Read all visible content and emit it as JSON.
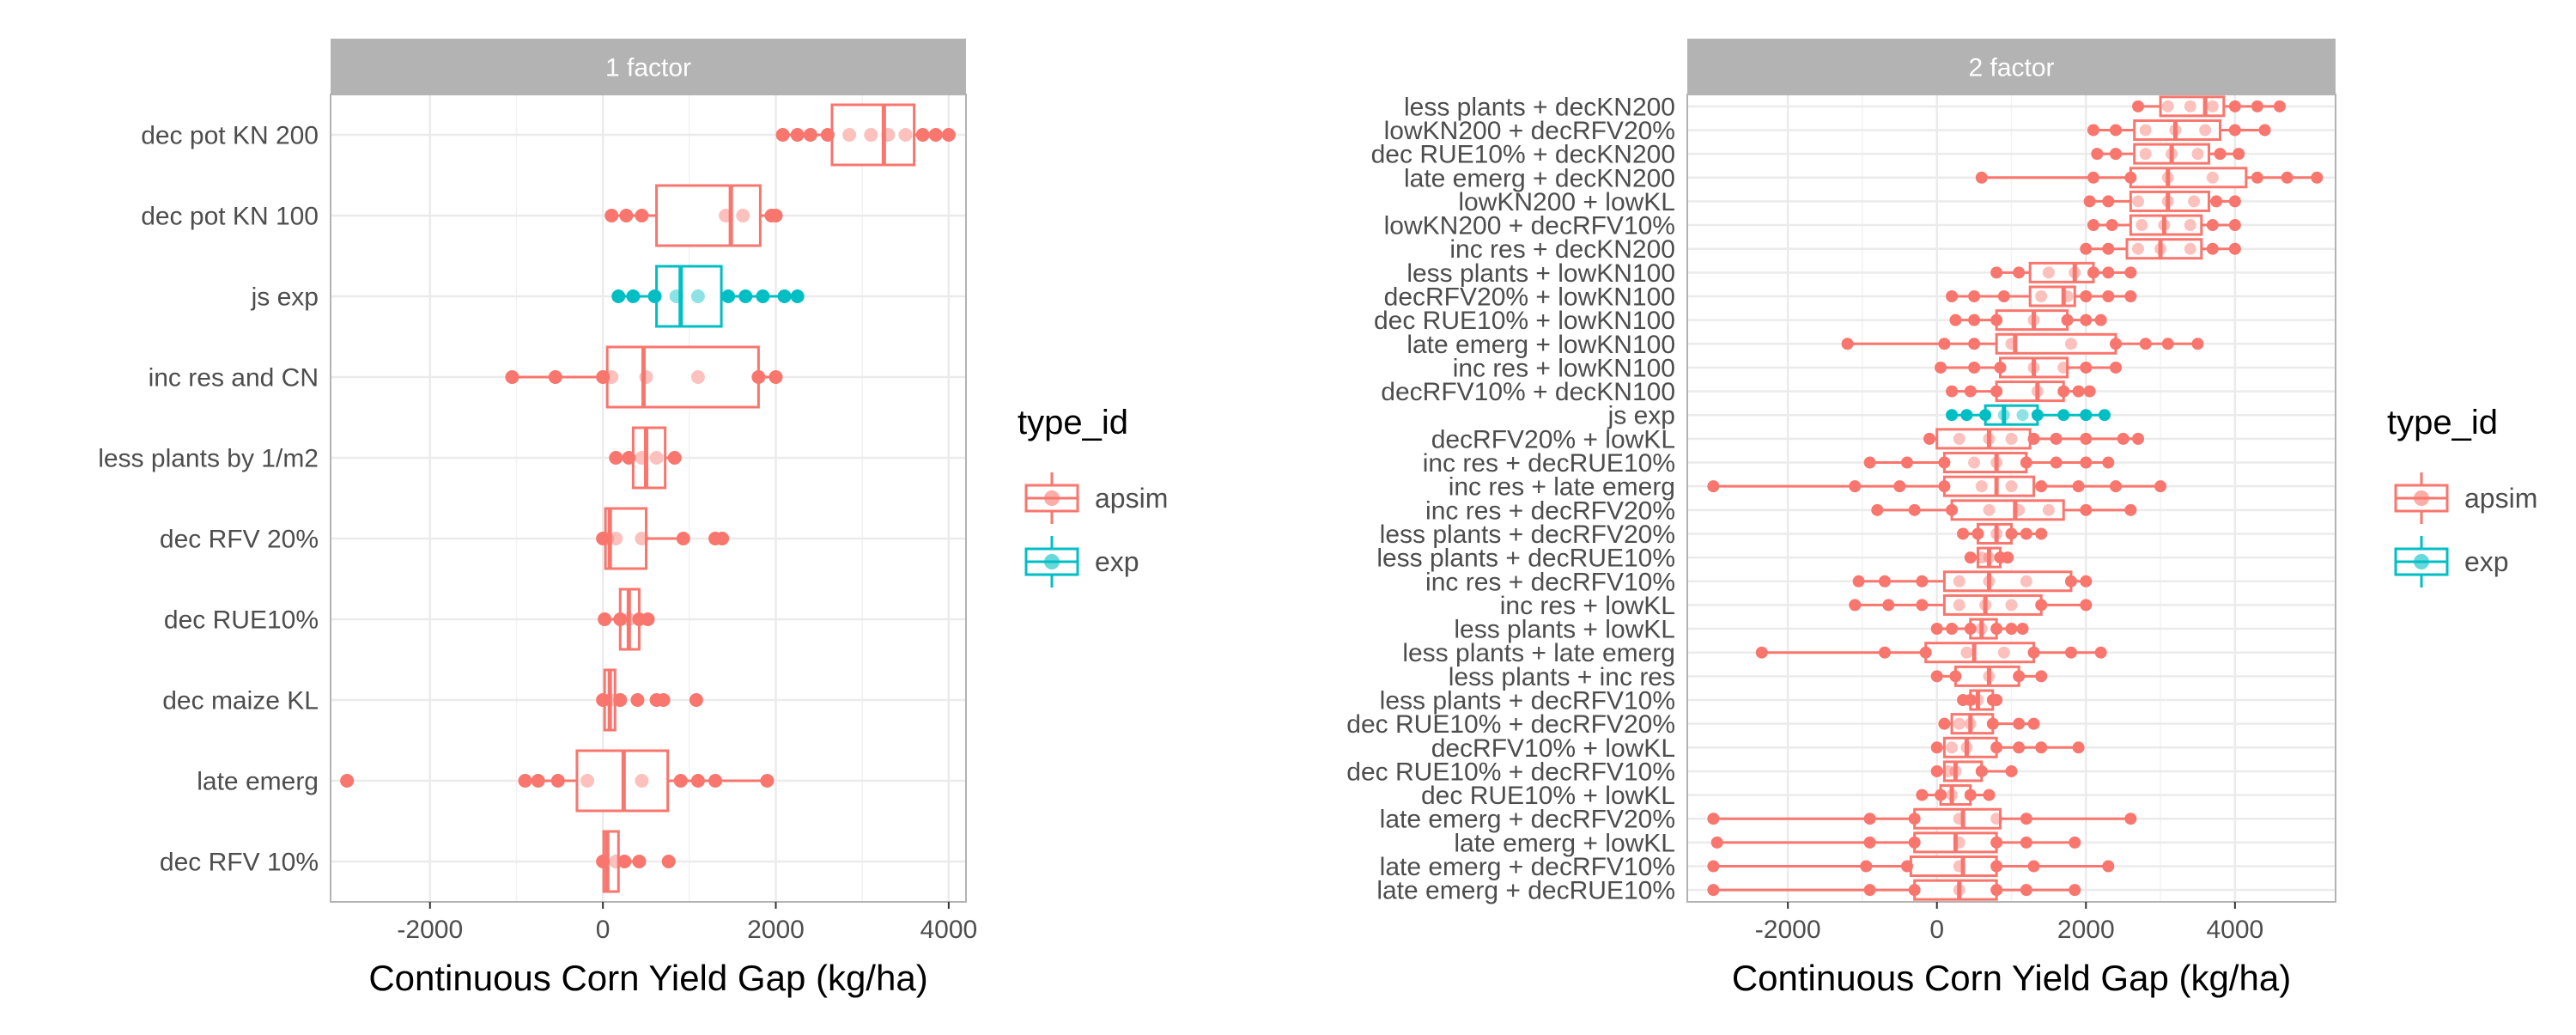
{
  "colors": {
    "apsim": "#F8766D",
    "exp": "#00BFC4",
    "strip": "#B3B3B3",
    "grid": "#EBEBEB",
    "panel_border": "#B3B3B3",
    "text": "#4D4D4D"
  },
  "legend": {
    "title": "type_id",
    "items": [
      {
        "label": "apsim",
        "color": "#F8766D"
      },
      {
        "label": "exp",
        "color": "#00BFC4"
      }
    ]
  },
  "chart_data": [
    {
      "type": "boxplot",
      "facet": "1 factor",
      "orientation": "horizontal",
      "xlabel": "Continuous Corn Yield Gap (kg/ha)",
      "ylabel": "",
      "xlim": [
        -3150,
        4200
      ],
      "xticks": [
        -2000,
        0,
        2000,
        4000
      ],
      "grid": true,
      "legend_position": "right",
      "categories": [
        {
          "label": "dec pot KN 200",
          "type_id": "apsim",
          "q1": 2650,
          "median": 3250,
          "q3": 3600,
          "whisker_low": 2080,
          "whisker_high": 4000,
          "points": [
            2080,
            2250,
            2400,
            2600,
            2850,
            3100,
            3300,
            3500,
            3700,
            3850,
            4000
          ]
        },
        {
          "label": "dec pot KN 100",
          "type_id": "apsim",
          "q1": 620,
          "median": 1480,
          "q3": 1820,
          "whisker_low": 100,
          "whisker_high": 2000,
          "points": [
            100,
            270,
            450,
            1420,
            1620,
            1950,
            2000
          ]
        },
        {
          "label": "js exp",
          "type_id": "exp",
          "q1": 620,
          "median": 900,
          "q3": 1370,
          "whisker_low": 180,
          "whisker_high": 2250,
          "points": [
            180,
            350,
            600,
            850,
            1100,
            1450,
            1650,
            1850,
            2100,
            2250
          ]
        },
        {
          "label": "inc res and CN",
          "type_id": "apsim",
          "q1": 50,
          "median": 470,
          "q3": 1800,
          "whisker_low": -1050,
          "whisker_high": 2000,
          "points": [
            -1050,
            -550,
            0,
            100,
            500,
            1100,
            1800,
            2000
          ]
        },
        {
          "label": "less plants by 1/m2",
          "type_id": "apsim",
          "q1": 350,
          "median": 500,
          "q3": 720,
          "whisker_low": 150,
          "whisker_high": 830,
          "points": [
            150,
            300,
            450,
            620,
            830
          ]
        },
        {
          "label": "dec RFV 20%",
          "type_id": "apsim",
          "q1": 30,
          "median": 80,
          "q3": 500,
          "whisker_low": 0,
          "whisker_high": 930,
          "points": [
            0,
            50,
            150,
            450,
            930,
            1300,
            1380
          ]
        },
        {
          "label": "dec RUE10%",
          "type_id": "apsim",
          "q1": 200,
          "median": 300,
          "q3": 420,
          "whisker_low": 20,
          "whisker_high": 520,
          "points": [
            20,
            200,
            300,
            420,
            520
          ]
        },
        {
          "label": "dec maize KL",
          "type_id": "apsim",
          "q1": 20,
          "median": 80,
          "q3": 140,
          "whisker_low": 0,
          "whisker_high": 200,
          "points": [
            0,
            80,
            200,
            400,
            620,
            700,
            1080
          ]
        },
        {
          "label": "late emerg",
          "type_id": "apsim",
          "q1": -300,
          "median": 240,
          "q3": 750,
          "whisker_low": -900,
          "whisker_high": 1900,
          "points": [
            -2960,
            -900,
            -750,
            -520,
            -180,
            450,
            900,
            1100,
            1300,
            1900
          ]
        },
        {
          "label": "dec RFV 10%",
          "type_id": "apsim",
          "q1": 10,
          "median": 50,
          "q3": 180,
          "whisker_low": 0,
          "whisker_high": 420,
          "points": [
            0,
            150,
            250,
            420,
            760
          ]
        }
      ]
    },
    {
      "type": "boxplot",
      "facet": "2 factor",
      "orientation": "horizontal",
      "xlabel": "Continuous Corn Yield Gap (kg/ha)",
      "ylabel": "",
      "xlim": [
        -3350,
        5350
      ],
      "xticks": [
        -2000,
        0,
        2000,
        4000
      ],
      "grid": true,
      "legend_position": "right",
      "categories": [
        {
          "label": "less plants + decKN200",
          "type_id": "apsim",
          "q1": 3000,
          "median": 3600,
          "q3": 3850,
          "whisker_low": 2700,
          "whisker_high": 4600,
          "points": [
            2700,
            3100,
            3400,
            3700,
            4000,
            4300,
            4600
          ]
        },
        {
          "label": "lowKN200 + decRFV20%",
          "type_id": "apsim",
          "q1": 2650,
          "median": 3200,
          "q3": 3800,
          "whisker_low": 2100,
          "whisker_high": 4400,
          "points": [
            2100,
            2400,
            2800,
            3200,
            3600,
            4000,
            4400
          ]
        },
        {
          "label": "dec RUE10% + decKN200",
          "type_id": "apsim",
          "q1": 2650,
          "median": 3150,
          "q3": 3650,
          "whisker_low": 2150,
          "whisker_high": 4050,
          "points": [
            2150,
            2400,
            2800,
            3150,
            3500,
            3800,
            4050
          ]
        },
        {
          "label": "late emerg + decKN200",
          "type_id": "apsim",
          "q1": 2600,
          "median": 3100,
          "q3": 4150,
          "whisker_low": 600,
          "whisker_high": 5100,
          "points": [
            600,
            2100,
            2600,
            3100,
            3700,
            4300,
            4700,
            5100
          ]
        },
        {
          "label": "lowKN200 + lowKL",
          "type_id": "apsim",
          "q1": 2600,
          "median": 3100,
          "q3": 3650,
          "whisker_low": 2050,
          "whisker_high": 4000,
          "points": [
            2050,
            2300,
            2700,
            3100,
            3450,
            3750,
            4000
          ]
        },
        {
          "label": "lowKN200 + decRFV10%",
          "type_id": "apsim",
          "q1": 2600,
          "median": 3050,
          "q3": 3550,
          "whisker_low": 2100,
          "whisker_high": 4000,
          "points": [
            2100,
            2350,
            2750,
            3050,
            3400,
            3700,
            4000
          ]
        },
        {
          "label": "inc res + decKN200",
          "type_id": "apsim",
          "q1": 2550,
          "median": 3000,
          "q3": 3550,
          "whisker_low": 2000,
          "whisker_high": 4000,
          "points": [
            2000,
            2300,
            2700,
            3000,
            3400,
            3700,
            4000
          ]
        },
        {
          "label": "less plants + lowKN100",
          "type_id": "apsim",
          "q1": 1250,
          "median": 1850,
          "q3": 2100,
          "whisker_low": 800,
          "whisker_high": 2600,
          "points": [
            800,
            1100,
            1500,
            1850,
            2100,
            2300,
            2600
          ]
        },
        {
          "label": "decRFV20% + lowKN100",
          "type_id": "apsim",
          "q1": 1250,
          "median": 1700,
          "q3": 1850,
          "whisker_low": 200,
          "whisker_high": 2600,
          "points": [
            200,
            500,
            900,
            1400,
            1750,
            2000,
            2300,
            2600
          ]
        },
        {
          "label": "dec RUE10% + lowKN100",
          "type_id": "apsim",
          "q1": 800,
          "median": 1300,
          "q3": 1750,
          "whisker_low": 250,
          "whisker_high": 2200,
          "points": [
            250,
            500,
            800,
            1300,
            1750,
            2000,
            2200
          ]
        },
        {
          "label": "late emerg + lowKN100",
          "type_id": "apsim",
          "q1": 800,
          "median": 1050,
          "q3": 2400,
          "whisker_low": -1200,
          "whisker_high": 3500,
          "points": [
            -1200,
            100,
            500,
            1000,
            1800,
            2400,
            2800,
            3100,
            3500
          ]
        },
        {
          "label": "inc res + lowKN100",
          "type_id": "apsim",
          "q1": 850,
          "median": 1300,
          "q3": 1750,
          "whisker_low": 50,
          "whisker_high": 2400,
          "points": [
            50,
            500,
            850,
            1300,
            1700,
            2000,
            2400
          ]
        },
        {
          "label": "decRFV10% + decKN100",
          "type_id": "apsim",
          "q1": 800,
          "median": 1350,
          "q3": 1700,
          "whisker_low": 200,
          "whisker_high": 2050,
          "points": [
            200,
            450,
            800,
            1350,
            1700,
            1900,
            2050
          ]
        },
        {
          "label": "js exp",
          "type_id": "exp",
          "q1": 650,
          "median": 900,
          "q3": 1350,
          "whisker_low": 200,
          "whisker_high": 2250,
          "points": [
            200,
            400,
            650,
            900,
            1150,
            1350,
            1700,
            2000,
            2250
          ]
        },
        {
          "label": "decRFV20% + lowKL",
          "type_id": "apsim",
          "q1": 0,
          "median": 700,
          "q3": 1250,
          "whisker_low": -100,
          "whisker_high": 2700,
          "points": [
            -100,
            300,
            700,
            1000,
            1300,
            1600,
            2000,
            2500,
            2700
          ]
        },
        {
          "label": "inc res + decRUE10%",
          "type_id": "apsim",
          "q1": 100,
          "median": 800,
          "q3": 1200,
          "whisker_low": -900,
          "whisker_high": 2300,
          "points": [
            -900,
            -400,
            100,
            500,
            800,
            1200,
            1600,
            2000,
            2300
          ]
        },
        {
          "label": "inc res + late emerg",
          "type_id": "apsim",
          "q1": 100,
          "median": 800,
          "q3": 1300,
          "whisker_low": -3000,
          "whisker_high": 3000,
          "points": [
            -3000,
            -1100,
            -500,
            100,
            600,
            1000,
            1400,
            1900,
            2400,
            3000
          ]
        },
        {
          "label": "inc res + decRFV20%",
          "type_id": "apsim",
          "q1": 200,
          "median": 1050,
          "q3": 1700,
          "whisker_low": -800,
          "whisker_high": 2600,
          "points": [
            -800,
            -300,
            200,
            700,
            1100,
            1500,
            2000,
            2600
          ]
        },
        {
          "label": "less plants + decRFV20%",
          "type_id": "apsim",
          "q1": 550,
          "median": 800,
          "q3": 1000,
          "whisker_low": 350,
          "whisker_high": 1400,
          "points": [
            350,
            550,
            800,
            1000,
            1200,
            1400
          ]
        },
        {
          "label": "less plants + decRUE10%",
          "type_id": "apsim",
          "q1": 550,
          "median": 700,
          "q3": 850,
          "whisker_low": 450,
          "whisker_high": 950,
          "points": [
            450,
            600,
            700,
            850,
            950
          ]
        },
        {
          "label": "inc res + decRFV10%",
          "type_id": "apsim",
          "q1": 100,
          "median": 700,
          "q3": 1800,
          "whisker_low": -1050,
          "whisker_high": 2000,
          "points": [
            -1050,
            -700,
            -200,
            300,
            700,
            1200,
            1800,
            2000
          ]
        },
        {
          "label": "inc res + lowKL",
          "type_id": "apsim",
          "q1": 100,
          "median": 650,
          "q3": 1400,
          "whisker_low": -1100,
          "whisker_high": 2000,
          "points": [
            -1100,
            -650,
            -200,
            300,
            650,
            1000,
            1400,
            2000
          ]
        },
        {
          "label": "less plants + lowKL",
          "type_id": "apsim",
          "q1": 450,
          "median": 600,
          "q3": 800,
          "whisker_low": 0,
          "whisker_high": 1150,
          "points": [
            0,
            200,
            450,
            600,
            800,
            1000,
            1150
          ]
        },
        {
          "label": "less plants + late emerg",
          "type_id": "apsim",
          "q1": -150,
          "median": 500,
          "q3": 1300,
          "whisker_low": -2350,
          "whisker_high": 2200,
          "points": [
            -2350,
            -700,
            -150,
            400,
            900,
            1300,
            1800,
            2200
          ]
        },
        {
          "label": "less plants + inc res",
          "type_id": "apsim",
          "q1": 250,
          "median": 700,
          "q3": 1100,
          "whisker_low": 0,
          "whisker_high": 1400,
          "points": [
            0,
            250,
            700,
            1100,
            1400
          ]
        },
        {
          "label": "less plants + decRFV10%",
          "type_id": "apsim",
          "q1": 450,
          "median": 550,
          "q3": 750,
          "whisker_low": 350,
          "whisker_high": 800,
          "points": [
            350,
            450,
            550,
            750,
            800
          ]
        },
        {
          "label": "dec RUE10% + decRFV20%",
          "type_id": "apsim",
          "q1": 200,
          "median": 450,
          "q3": 750,
          "whisker_low": 100,
          "whisker_high": 1300,
          "points": [
            100,
            300,
            450,
            750,
            1100,
            1300
          ]
        },
        {
          "label": "decRFV10% + lowKL",
          "type_id": "apsim",
          "q1": 100,
          "median": 400,
          "q3": 800,
          "whisker_low": 0,
          "whisker_high": 1900,
          "points": [
            0,
            200,
            400,
            800,
            1100,
            1400,
            1900
          ]
        },
        {
          "label": "dec RUE10% + decRFV10%",
          "type_id": "apsim",
          "q1": 100,
          "median": 250,
          "q3": 600,
          "whisker_low": 0,
          "whisker_high": 1000,
          "points": [
            0,
            150,
            250,
            600,
            1000
          ]
        },
        {
          "label": "dec RUE10% + lowKL",
          "type_id": "apsim",
          "q1": 50,
          "median": 200,
          "q3": 450,
          "whisker_low": -200,
          "whisker_high": 700,
          "points": [
            -200,
            50,
            200,
            450,
            700
          ]
        },
        {
          "label": "late emerg + decRFV20%",
          "type_id": "apsim",
          "q1": -300,
          "median": 350,
          "q3": 850,
          "whisker_low": -3000,
          "whisker_high": 2600,
          "points": [
            -3000,
            -900,
            -300,
            300,
            800,
            1200,
            2600
          ]
        },
        {
          "label": "late emerg + lowKL",
          "type_id": "apsim",
          "q1": -300,
          "median": 250,
          "q3": 800,
          "whisker_low": -2950,
          "whisker_high": 1850,
          "points": [
            -2950,
            -900,
            -300,
            300,
            800,
            1200,
            1850
          ]
        },
        {
          "label": "late emerg + decRFV10%",
          "type_id": "apsim",
          "q1": -350,
          "median": 350,
          "q3": 800,
          "whisker_low": -3000,
          "whisker_high": 2300,
          "points": [
            -3000,
            -950,
            -400,
            300,
            800,
            1300,
            2300
          ]
        },
        {
          "label": "late emerg + decRUE10%",
          "type_id": "apsim",
          "q1": -300,
          "median": 300,
          "q3": 800,
          "whisker_low": -3000,
          "whisker_high": 1850,
          "points": [
            -3000,
            -900,
            -300,
            300,
            800,
            1200,
            1850
          ]
        }
      ]
    }
  ]
}
